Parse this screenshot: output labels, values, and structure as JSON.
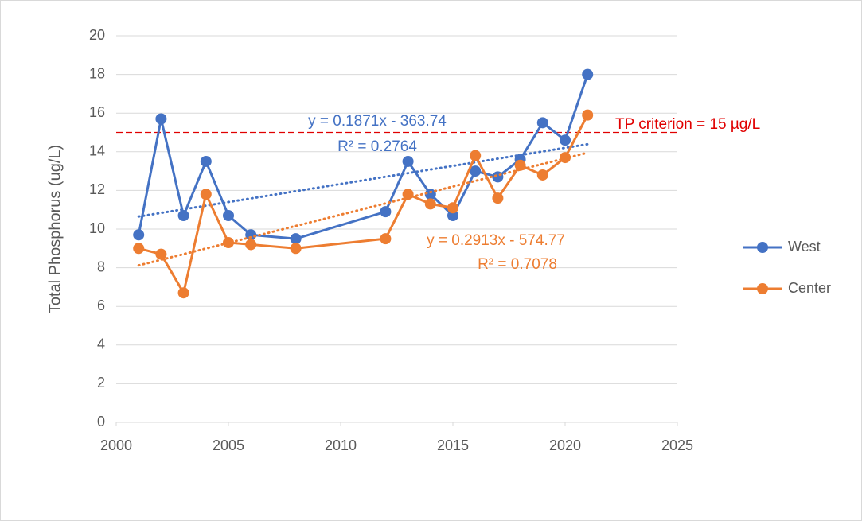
{
  "chart_data": {
    "type": "line",
    "y_axis_label": "Total Phosphorus (ug/L)",
    "x": [
      2001,
      2002,
      2003,
      2004,
      2005,
      2006,
      2008,
      2012,
      2013,
      2014,
      2015,
      2016,
      2017,
      2018,
      2019,
      2020,
      2021
    ],
    "series": [
      {
        "name": "West",
        "color": "#4472c4",
        "values": [
          9.7,
          15.7,
          10.7,
          13.5,
          10.7,
          9.7,
          9.5,
          10.9,
          13.5,
          11.8,
          10.7,
          13.0,
          12.7,
          13.6,
          15.5,
          14.6,
          18.0
        ],
        "trendline": {
          "equation": "y = 0.1871x - 363.74",
          "r_squared": "R² = 0.2764",
          "x": [
            2001,
            2021
          ],
          "values": [
            10.65,
            14.39
          ]
        }
      },
      {
        "name": "Center",
        "color": "#ed7d31",
        "values": [
          9.0,
          8.7,
          6.7,
          11.8,
          9.3,
          9.2,
          9.0,
          9.5,
          11.8,
          11.3,
          11.1,
          13.8,
          11.6,
          13.3,
          12.8,
          13.7,
          15.9
        ],
        "trendline": {
          "equation": "y = 0.2913x - 574.77",
          "r_squared": "R² = 0.7078",
          "x": [
            2001,
            2021
          ],
          "values": [
            8.12,
            13.95
          ]
        }
      }
    ],
    "reference_line": {
      "value": 15,
      "label": "TP criterion = 15 µg/L",
      "color": "#e00000"
    },
    "xlim": [
      2000,
      2025
    ],
    "xticks": [
      2000,
      2005,
      2010,
      2015,
      2020,
      2025
    ],
    "ylim": [
      0,
      20
    ],
    "yticks": [
      0,
      2,
      4,
      6,
      8,
      10,
      12,
      14,
      16,
      18,
      20
    ],
    "grid": true,
    "legend": "right"
  }
}
